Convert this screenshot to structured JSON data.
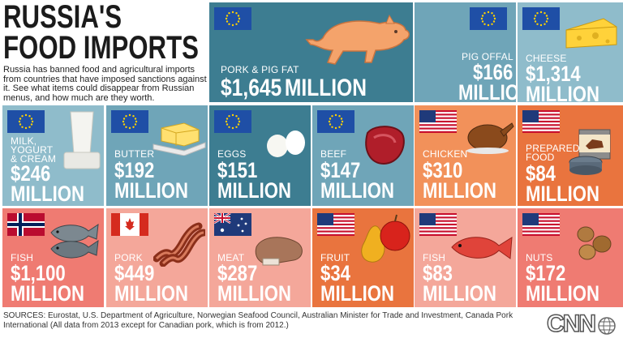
{
  "header": {
    "title_line1": "RUSSIA'S",
    "title_line2": "FOOD IMPORTS",
    "intro": "Russia has banned food and agricultural imports from countries that have imposed sanctions against it. See what items could disappear from Russian menus, and how much are they worth."
  },
  "colors": {
    "teal_dark": "#3d7d91",
    "teal": "#6fa5b8",
    "teal_light": "#8fbccb",
    "orange": "#f2915a",
    "orange_dark": "#e9743e",
    "coral": "#ef7b72",
    "salmon": "#f4a79a"
  },
  "items": [
    {
      "label": "PORK & PIG FAT",
      "value": "$1,645",
      "unit": "MILLION",
      "flag": "eu-flag"
    },
    {
      "label": "PIG OFFAL",
      "value": "$166",
      "unit": "MILLION",
      "flag": "eu-flag"
    },
    {
      "label": "CHEESE",
      "value": "$1,314",
      "unit": "MILLION",
      "flag": "eu-flag"
    },
    {
      "label": "MILK, YOGURT & CREAM",
      "value": "$246",
      "unit": "MILLION",
      "flag": "eu-flag"
    },
    {
      "label": "BUTTER",
      "value": "$192",
      "unit": "MILLION",
      "flag": "eu-flag"
    },
    {
      "label": "EGGS",
      "value": "$151",
      "unit": "MILLION",
      "flag": "eu-flag"
    },
    {
      "label": "BEEF",
      "value": "$147",
      "unit": "MILLION",
      "flag": "eu-flag"
    },
    {
      "label": "CHICKEN",
      "value": "$310",
      "unit": "MILLION",
      "flag": "us-flag"
    },
    {
      "label": "PREPARED FOOD",
      "value": "$84",
      "unit": "MILLION",
      "flag": "us-flag"
    },
    {
      "label": "FISH",
      "value": "$1,100",
      "unit": "MILLION",
      "flag": "norway-flag"
    },
    {
      "label": "PORK",
      "value": "$449",
      "unit": "MILLION",
      "flag": "canada-flag"
    },
    {
      "label": "MEAT",
      "value": "$287",
      "unit": "MILLION",
      "flag": "australia-flag"
    },
    {
      "label": "FRUIT",
      "value": "$34",
      "unit": "MILLION",
      "flag": "us-flag"
    },
    {
      "label": "FISH",
      "value": "$83",
      "unit": "MILLION",
      "flag": "us-flag"
    },
    {
      "label": "NUTS",
      "value": "$172",
      "unit": "MILLION",
      "flag": "us-flag"
    }
  ],
  "footer": {
    "sources": "SOURCES:  Eurostat, U.S. Department of Agriculture, Norwegian Seafood Council, Australian Minister for Trade and Investment, Canada Pork International (All data from 2013 except for Canadian pork, which is from 2012.)",
    "logo": "CNN"
  }
}
